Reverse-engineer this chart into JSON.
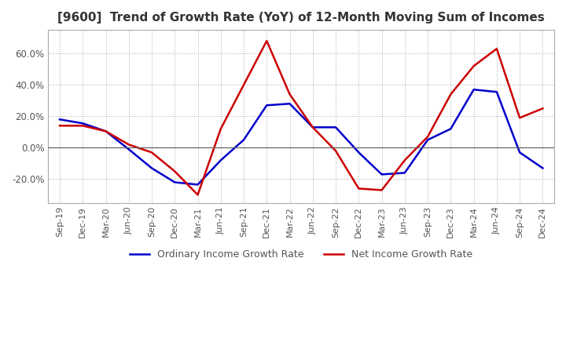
{
  "title": "[9600]  Trend of Growth Rate (YoY) of 12-Month Moving Sum of Incomes",
  "x_labels": [
    "Sep-19",
    "Dec-19",
    "Mar-20",
    "Jun-20",
    "Sep-20",
    "Dec-20",
    "Mar-21",
    "Jun-21",
    "Sep-21",
    "Dec-21",
    "Mar-22",
    "Jun-22",
    "Sep-22",
    "Dec-22",
    "Mar-23",
    "Jun-23",
    "Sep-23",
    "Dec-23",
    "Mar-24",
    "Jun-24",
    "Sep-24",
    "Dec-24"
  ],
  "ordinary_income": [
    18.0,
    15.5,
    10.5,
    -1.0,
    -13.0,
    -22.0,
    -23.5,
    -8.0,
    5.0,
    27.0,
    28.0,
    13.0,
    13.0,
    -3.0,
    -17.0,
    -16.0,
    5.0,
    12.0,
    37.0,
    35.5,
    -3.0,
    -13.0
  ],
  "net_income": [
    14.0,
    14.0,
    10.5,
    2.0,
    -3.0,
    -15.0,
    -30.0,
    12.0,
    40.0,
    68.0,
    34.0,
    13.0,
    -2.0,
    -26.0,
    -27.0,
    -8.0,
    7.0,
    34.0,
    52.0,
    63.0,
    19.0,
    25.0
  ],
  "ordinary_color": "#0000cc",
  "net_color": "#cc0000",
  "ylim": [
    -35,
    75
  ],
  "yticks": [
    -20.0,
    0.0,
    20.0,
    40.0,
    60.0
  ],
  "background_color": "#ffffff",
  "grid_color": "#aaaaaa",
  "legend_labels": [
    "Ordinary Income Growth Rate",
    "Net Income Growth Rate"
  ]
}
